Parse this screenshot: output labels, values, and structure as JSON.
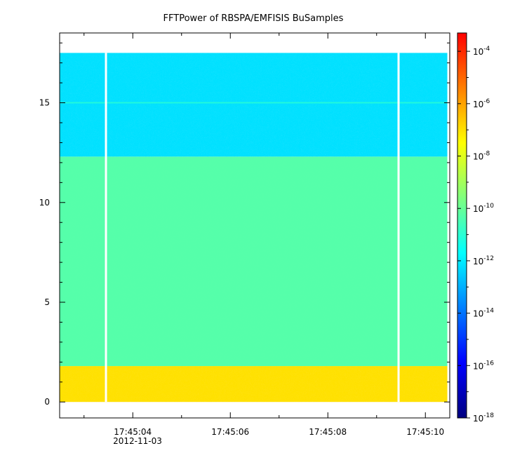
{
  "chart_data": {
    "type": "heatmap",
    "title": "FFTPower of RBSPA/EMFISIS  BuSamples",
    "xlabel": "",
    "ylabel": "",
    "x_tick_labels": [
      "17:45:04",
      "17:45:06",
      "17:45:08",
      "17:45:10"
    ],
    "x_date_label": "2012-11-03",
    "x_range_seconds": [
      2.5,
      10.5
    ],
    "y_ticks": [
      0,
      5,
      10,
      15
    ],
    "y_tick_labels": [
      "0",
      "5",
      "10",
      "15"
    ],
    "ylim": [
      -0.8,
      18.5
    ],
    "zscale": "log",
    "zlim_exponent": [
      -18,
      -3.3
    ],
    "colorbar_tick_exponents": [
      -18,
      -16,
      -14,
      -12,
      -10,
      -8,
      -6,
      -4
    ],
    "colorbar_tick_base": "10",
    "colorbar_tick_labels": [
      "-18",
      "-16",
      "-14",
      "-12",
      "-10",
      "-8",
      "-6",
      "-4"
    ],
    "data_gaps_seconds": [
      3.45,
      9.45
    ],
    "data_x_range_seconds": [
      2.5,
      10.45
    ],
    "data_y_range": [
      0,
      17.5
    ],
    "power_bands": [
      {
        "y_from": 0.0,
        "y_to": 1.8,
        "log10_power": -7.0
      },
      {
        "y_from": 1.8,
        "y_to": 12.3,
        "log10_power": -10.3
      },
      {
        "y_from": 12.3,
        "y_to": 17.5,
        "log10_power": -12.2
      }
    ],
    "line_feature": {
      "y": 15.0,
      "log10_power": -11.0
    },
    "colormap": [
      "#00007f",
      "#0000ff",
      "#007fff",
      "#00ffff",
      "#7fff7f",
      "#ffff00",
      "#ff7f00",
      "#ff0000"
    ]
  }
}
